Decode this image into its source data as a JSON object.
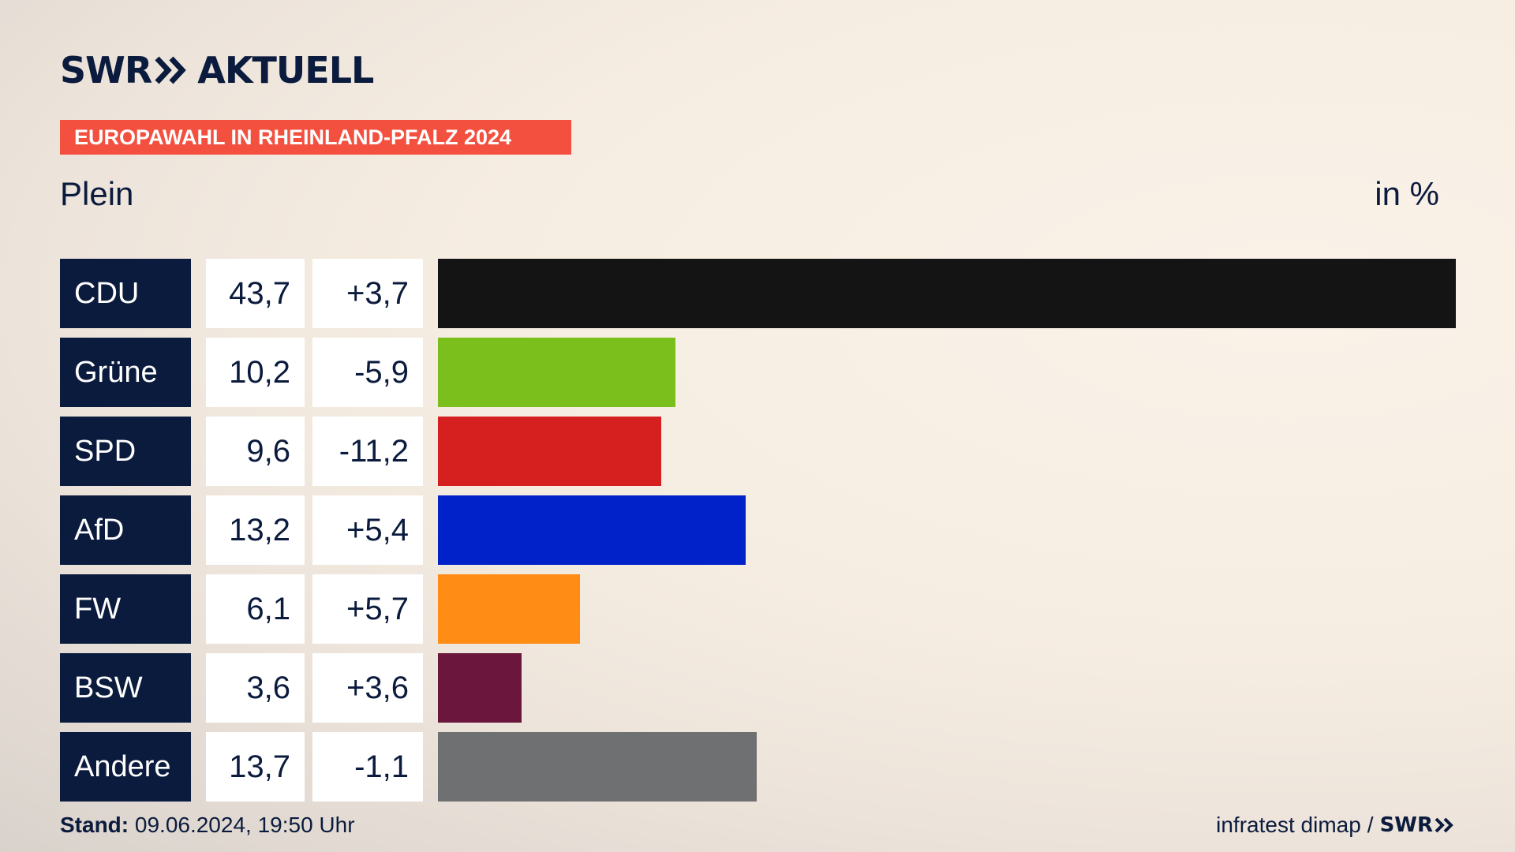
{
  "brand": {
    "name_left": "SWR",
    "name_right": "AKTUELL"
  },
  "banner": "EUROPAWAHL IN RHEINLAND-PFALZ 2024",
  "subtitle": "Plein",
  "unit": "in %",
  "footer": {
    "stand_label": "Stand:",
    "stand_value": "09.06.2024, 19:50 Uhr",
    "source": "infratest dimap",
    "separator": "/",
    "source_logo": "SWR"
  },
  "chart_data": {
    "type": "bar",
    "orientation": "horizontal",
    "categories": [
      "CDU",
      "Grüne",
      "SPD",
      "AfD",
      "FW",
      "BSW",
      "Andere"
    ],
    "values": [
      43.7,
      10.2,
      9.6,
      13.2,
      6.1,
      3.6,
      13.7
    ],
    "value_labels": [
      "43,7",
      "10,2",
      "9,6",
      "13,2",
      "6,1",
      "3,6",
      "13,7"
    ],
    "changes": [
      3.7,
      -5.9,
      -11.2,
      5.4,
      5.7,
      3.6,
      -1.1
    ],
    "change_labels": [
      "+3,7",
      "-5,9",
      "-11,2",
      "+5,4",
      "+5,7",
      "+3,6",
      "-1,1"
    ],
    "colors": [
      "#141414",
      "#7bbf1c",
      "#d61f1f",
      "#0022c8",
      "#ff8c14",
      "#6b173d",
      "#6f7072"
    ],
    "xlim": [
      0,
      43.7
    ],
    "title": "EUROPAWAHL IN RHEINLAND-PFALZ 2024",
    "subtitle": "Plein",
    "unit": "in %"
  }
}
